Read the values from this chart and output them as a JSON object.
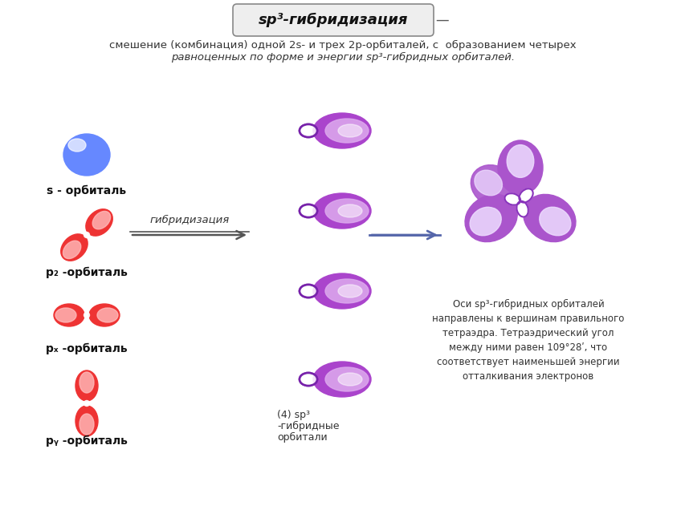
{
  "title": "sp³-гибридизация",
  "subtitle_line1": "смешение (комбинация) одной 2s- и трех 2p-орбиталей, с  образованием четырех",
  "subtitle_line2": "равноценных по форме и энергии sp³-гибридных орбиталей.",
  "label_s": "s - орбиталь",
  "label_pz": "p₂ -орбиталь",
  "label_px": "pₓ -орбиталь",
  "label_py": "pᵧ -орбиталь",
  "arrow_label": "гибридизация",
  "hybrid_label_line1": "(4) sp³",
  "hybrid_label_line2": "-гибридные",
  "hybrid_label_line3": "орбитали",
  "right_text": "Оси sp³-гибридных орбиталей\nнаправлены к вершинам правильного\nтетраэдра. Тетраэдрический угол\nмежду ними равен 109°28ʹ, что\nсоответствует наименьшей энергии\nотталкивания электронов",
  "bg_color": "#ffffff",
  "border_color": "#bbbbbb",
  "s_color_dark": "#4466ee",
  "s_color_mid": "#6688ff",
  "s_color_light": "#ccddff",
  "p_color_dark": "#cc1111",
  "p_color_mid": "#ee3333",
  "p_color_light": "#ffbbbb",
  "h_color_dark": "#7722aa",
  "h_color_mid": "#aa44cc",
  "h_color_light": "#ddaaee",
  "h_color_pale": "#eeccff",
  "t_color_dark": "#8833bb",
  "t_color_mid": "#aa55cc",
  "t_color_light": "#cc99dd",
  "t_color_pale": "#eeddff"
}
